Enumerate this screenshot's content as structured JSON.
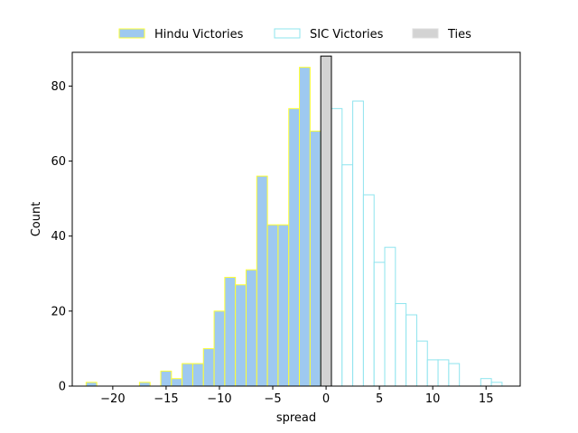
{
  "chart_data": {
    "type": "bar",
    "title": "",
    "xlabel": "spread",
    "ylabel": "Count",
    "xlim": [
      -23.8,
      18.2
    ],
    "ylim": [
      0,
      89
    ],
    "xticks": [
      -20,
      -15,
      -10,
      -5,
      0,
      5,
      10,
      15
    ],
    "xtick_labels": [
      "−20",
      "−15",
      "−10",
      "−5",
      "0",
      "5",
      "10",
      "15"
    ],
    "yticks": [
      0,
      20,
      40,
      60,
      80
    ],
    "ytick_labels": [
      "0",
      "20",
      "40",
      "60",
      "80"
    ],
    "grid": false,
    "legend_placement": "top-center, above plot, 3 columns",
    "series": [
      {
        "name": "Hindu Victories",
        "fill": "#9ec9f0",
        "edge": "#ffff33",
        "bins": [
          {
            "x0": -22.5,
            "x1": -21.5,
            "count": 1
          },
          {
            "x0": -17.5,
            "x1": -16.5,
            "count": 1
          },
          {
            "x0": -15.5,
            "x1": -14.5,
            "count": 4
          },
          {
            "x0": -14.5,
            "x1": -13.5,
            "count": 2
          },
          {
            "x0": -13.5,
            "x1": -12.5,
            "count": 6
          },
          {
            "x0": -12.5,
            "x1": -11.5,
            "count": 6
          },
          {
            "x0": -11.5,
            "x1": -10.5,
            "count": 10
          },
          {
            "x0": -10.5,
            "x1": -9.5,
            "count": 20
          },
          {
            "x0": -9.5,
            "x1": -8.5,
            "count": 29
          },
          {
            "x0": -8.5,
            "x1": -7.5,
            "count": 27
          },
          {
            "x0": -7.5,
            "x1": -6.5,
            "count": 31
          },
          {
            "x0": -6.5,
            "x1": -5.5,
            "count": 56
          },
          {
            "x0": -5.5,
            "x1": -4.5,
            "count": 43
          },
          {
            "x0": -4.5,
            "x1": -3.5,
            "count": 43
          },
          {
            "x0": -3.5,
            "x1": -2.5,
            "count": 74
          },
          {
            "x0": -2.5,
            "x1": -1.5,
            "count": 85
          },
          {
            "x0": -1.5,
            "x1": -0.5,
            "count": 68
          }
        ]
      },
      {
        "name": "SIC Victories",
        "fill": "#ffffff",
        "edge": "#8ee4ee",
        "bins": [
          {
            "x0": 0.5,
            "x1": 1.5,
            "count": 74
          },
          {
            "x0": 1.5,
            "x1": 2.5,
            "count": 59
          },
          {
            "x0": 2.5,
            "x1": 3.5,
            "count": 76
          },
          {
            "x0": 3.5,
            "x1": 4.5,
            "count": 51
          },
          {
            "x0": 4.5,
            "x1": 5.5,
            "count": 33
          },
          {
            "x0": 5.5,
            "x1": 6.5,
            "count": 37
          },
          {
            "x0": 6.5,
            "x1": 7.5,
            "count": 22
          },
          {
            "x0": 7.5,
            "x1": 8.5,
            "count": 19
          },
          {
            "x0": 8.5,
            "x1": 9.5,
            "count": 12
          },
          {
            "x0": 9.5,
            "x1": 10.5,
            "count": 7
          },
          {
            "x0": 10.5,
            "x1": 11.5,
            "count": 7
          },
          {
            "x0": 11.5,
            "x1": 12.5,
            "count": 6
          },
          {
            "x0": 14.5,
            "x1": 15.5,
            "count": 2
          },
          {
            "x0": 15.5,
            "x1": 16.5,
            "count": 1
          }
        ]
      },
      {
        "name": "Ties",
        "fill": "#d3d3d3",
        "edge": "#000000",
        "legend_edge": "#dddddd",
        "bins": [
          {
            "x0": -0.5,
            "x1": 0.5,
            "count": 88
          }
        ]
      }
    ]
  }
}
